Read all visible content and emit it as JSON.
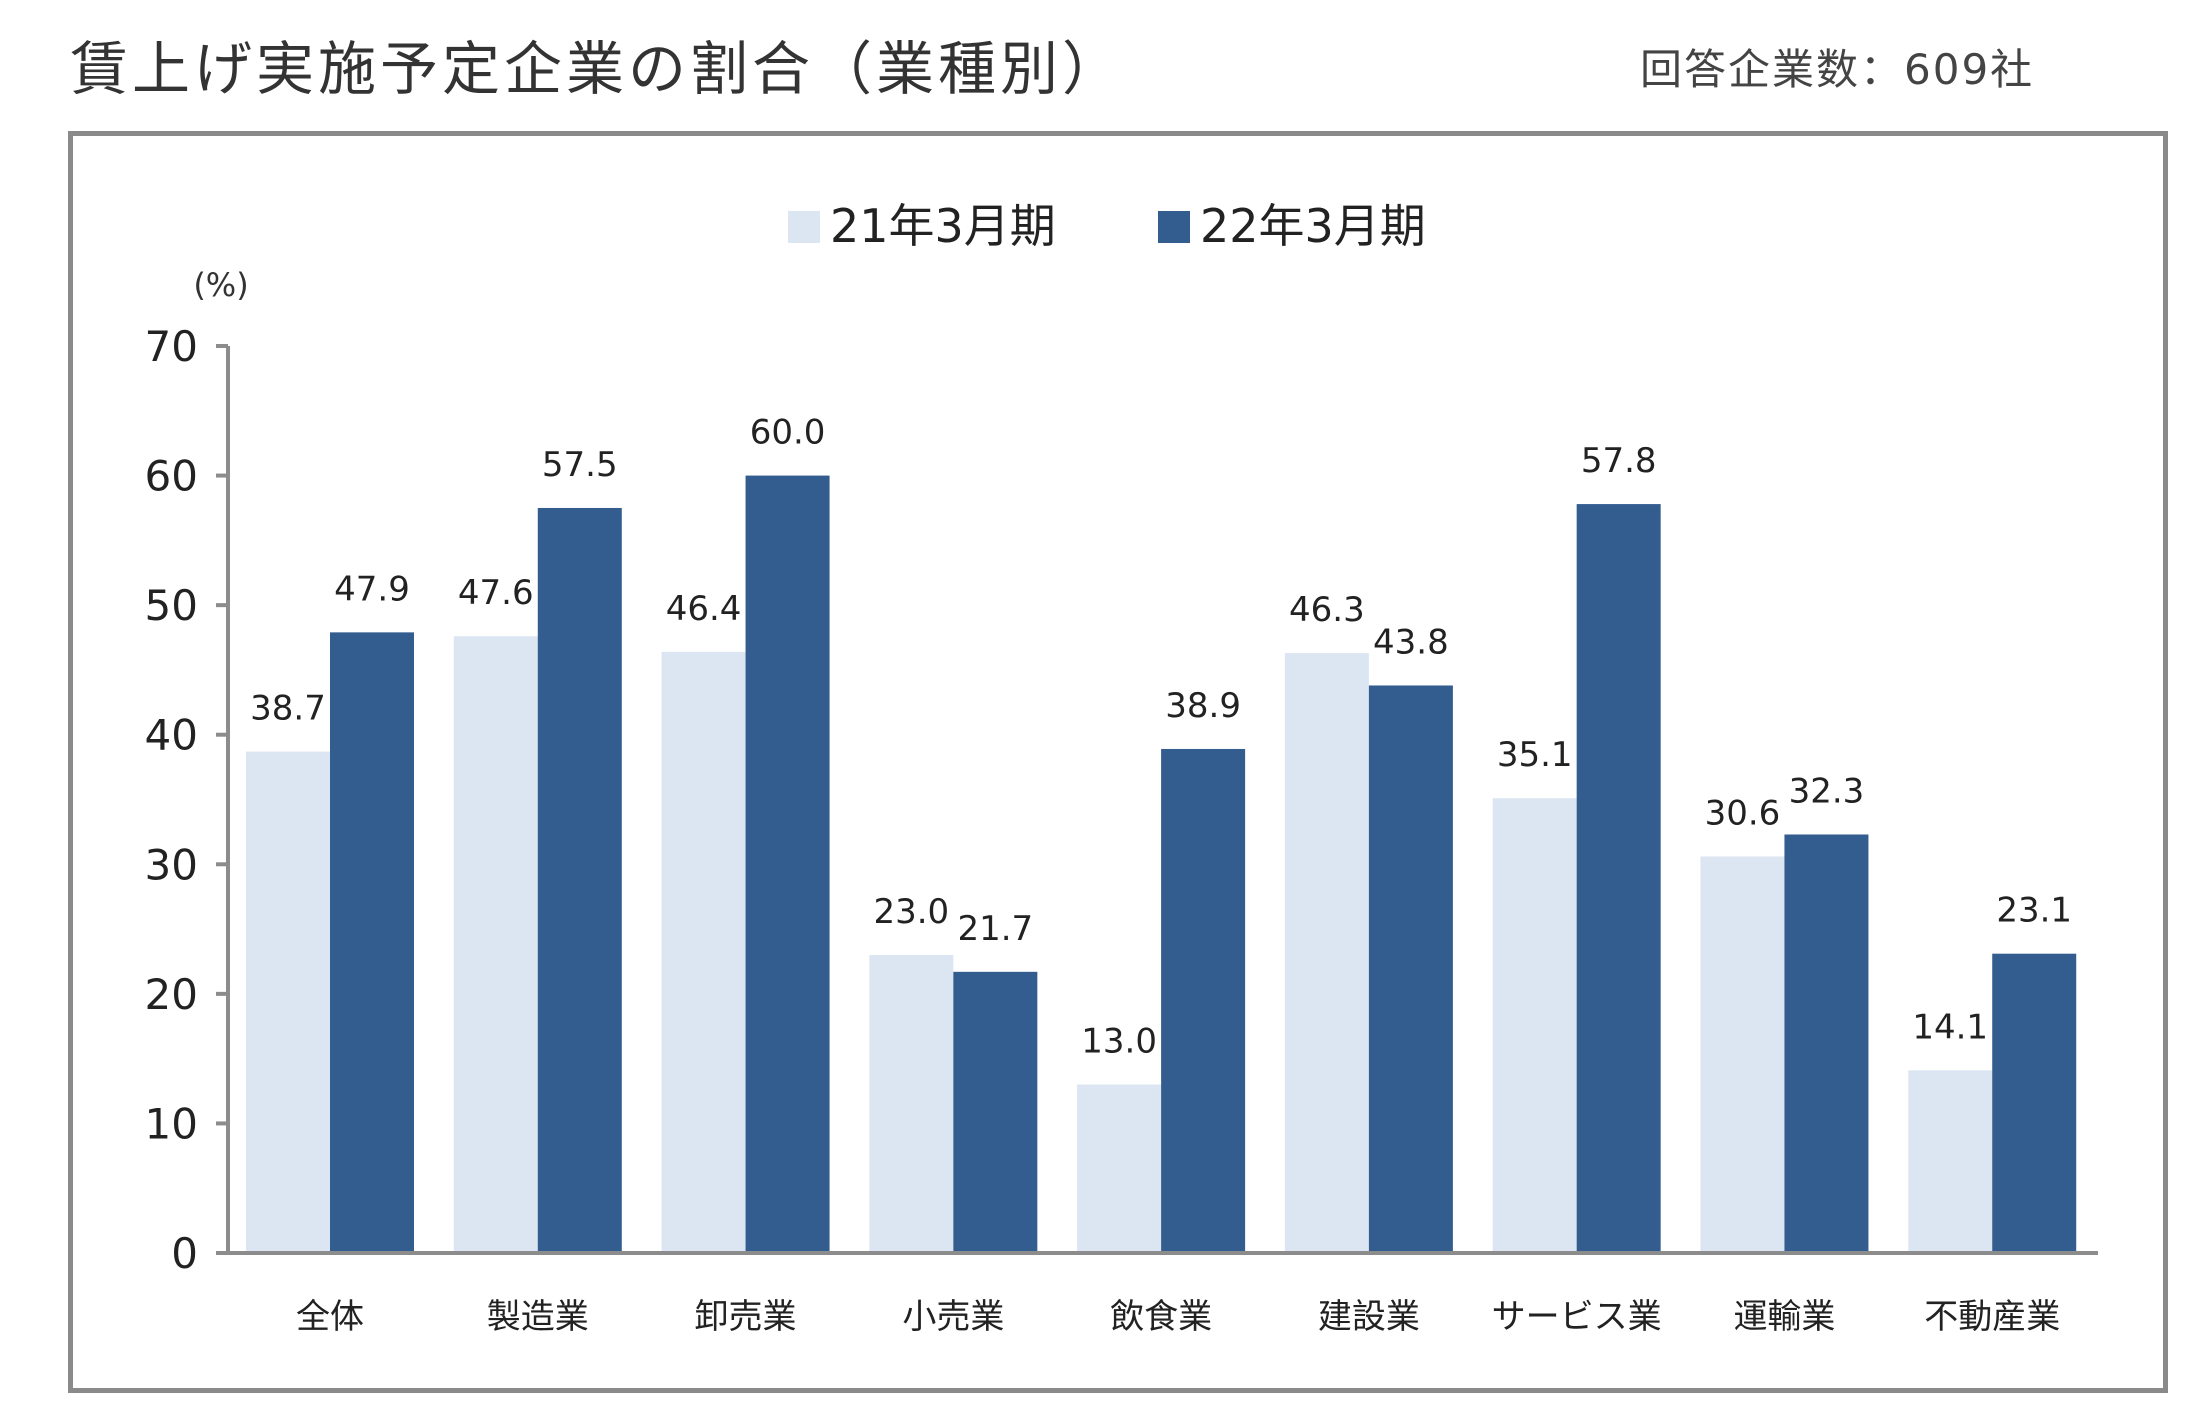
{
  "title": "賃上げ実施予定企業の割合（業種別）",
  "respondents": "回答企業数：609社",
  "chart_data": {
    "type": "bar",
    "title": "賃上げ実施予定企業の割合（業種別）",
    "ylabel": "(%)",
    "xlabel": "",
    "ylim": [
      0,
      70
    ],
    "yticks": [
      0,
      10,
      20,
      30,
      40,
      50,
      60,
      70
    ],
    "grid": false,
    "legend": "top-center",
    "categories": [
      "全体",
      "製造業",
      "卸売業",
      "小売業",
      "飲食業",
      "建設業",
      "サービス業",
      "運輸業",
      "不動産業"
    ],
    "series": [
      {
        "name": "21年3月期",
        "color": "#dce6f2",
        "values": [
          38.7,
          47.6,
          46.4,
          23.0,
          13.0,
          46.3,
          35.1,
          30.6,
          14.1
        ],
        "labels": [
          "38.7",
          "47.6",
          "46.4",
          "23.0",
          "13.0",
          "46.3",
          "35.1",
          "30.6",
          "14.1"
        ]
      },
      {
        "name": "22年3月期",
        "color": "#345d8f",
        "values": [
          47.9,
          57.5,
          60.0,
          21.7,
          38.9,
          43.8,
          57.8,
          32.3,
          23.1
        ],
        "labels": [
          "47.9",
          "57.5",
          "60.0",
          "21.7",
          "38.9",
          "43.8",
          "57.8",
          "32.3",
          "23.1"
        ]
      }
    ]
  }
}
